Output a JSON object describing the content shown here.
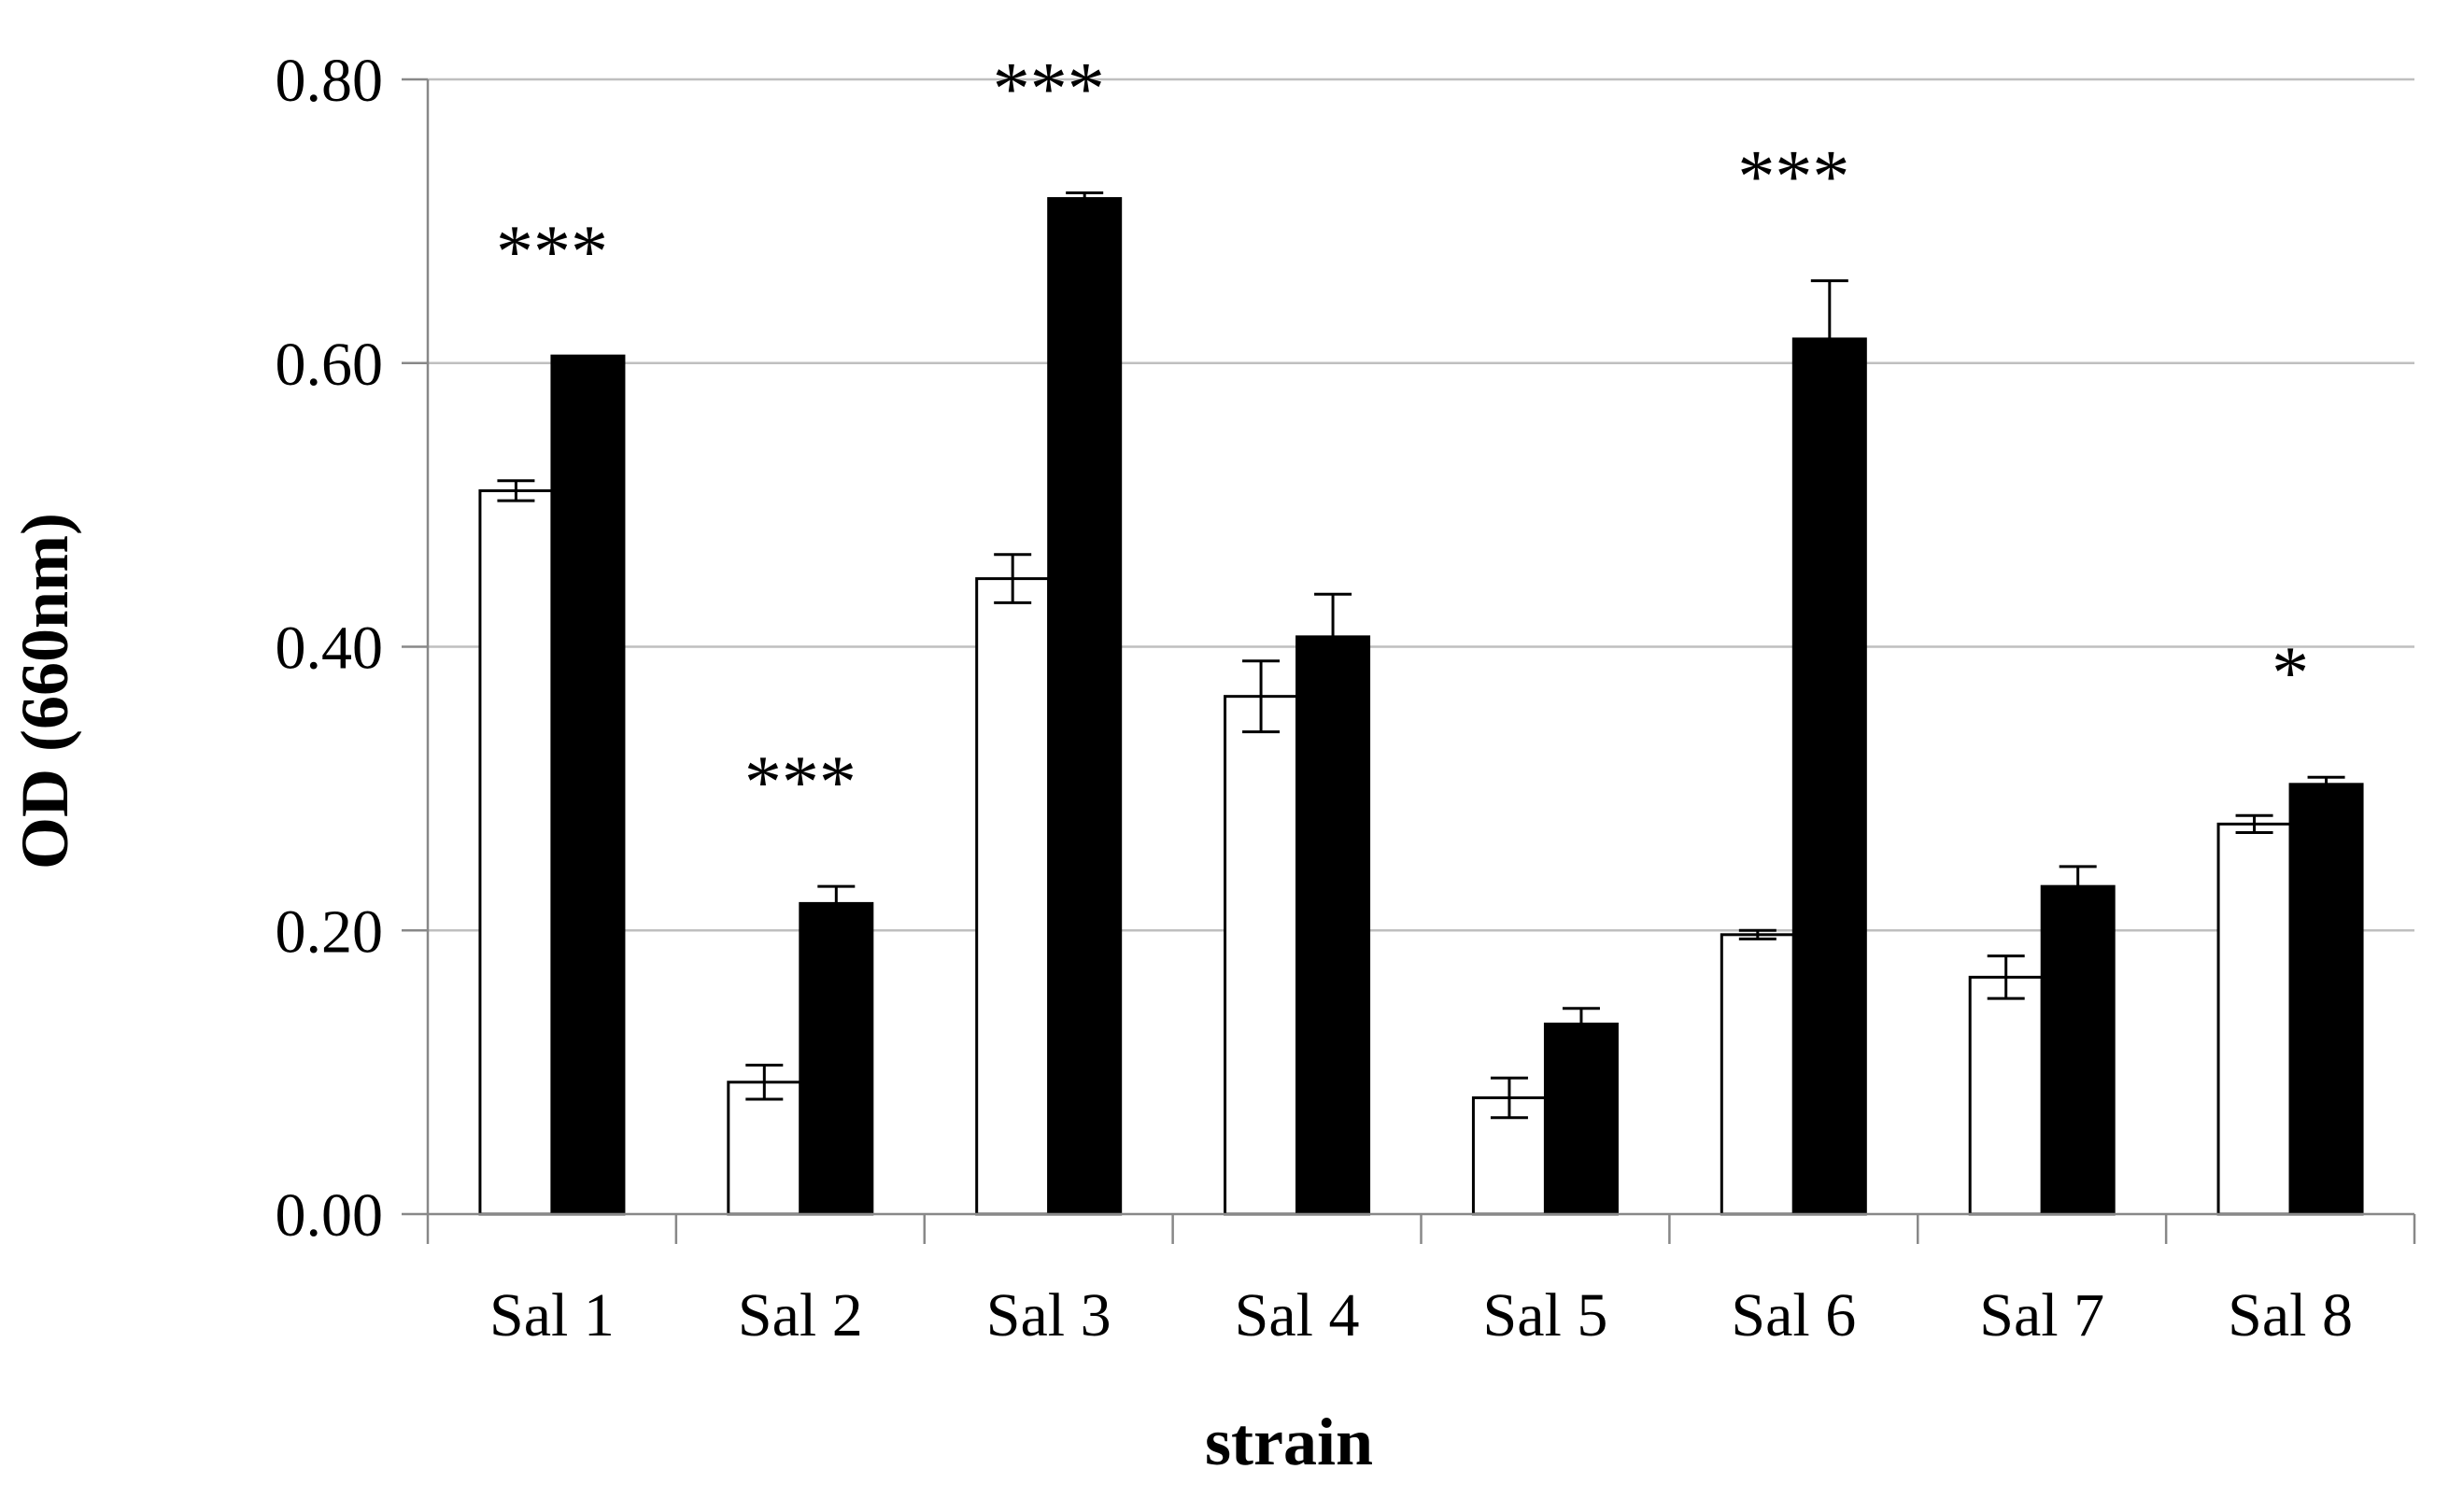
{
  "chart_data": {
    "type": "bar",
    "title": "",
    "xlabel": "strain",
    "ylabel": "OD (660nm)",
    "ylim": [
      0,
      0.8
    ],
    "yticks": [
      "0.00",
      "0.20",
      "0.40",
      "0.60",
      "0.80"
    ],
    "grid": true,
    "legend": "none",
    "categories": [
      "Sal 1",
      "Sal 2",
      "Sal 3",
      "Sal 4",
      "Sal 5",
      "Sal 6",
      "Sal 7",
      "Sal 8"
    ],
    "series": [
      {
        "fill": "#ffffff",
        "values": [
          0.51,
          0.093,
          0.448,
          0.365,
          0.082,
          0.197,
          0.167,
          0.275
        ],
        "errors": [
          0.007,
          0.012,
          0.017,
          0.025,
          0.014,
          0.003,
          0.015,
          0.006
        ]
      },
      {
        "fill": "#000000",
        "values": [
          0.605,
          0.219,
          0.716,
          0.407,
          0.134,
          0.617,
          0.231,
          0.303
        ],
        "errors": [
          0.0,
          0.012,
          0.004,
          0.03,
          0.011,
          0.041,
          0.014,
          0.005
        ]
      }
    ],
    "annotations": [
      "***",
      "***",
      "***",
      "",
      "",
      "***",
      "",
      "*"
    ],
    "colors": {
      "axis": "#888888",
      "grid": "#bfbfbf",
      "bar_stroke": "#000000"
    }
  }
}
